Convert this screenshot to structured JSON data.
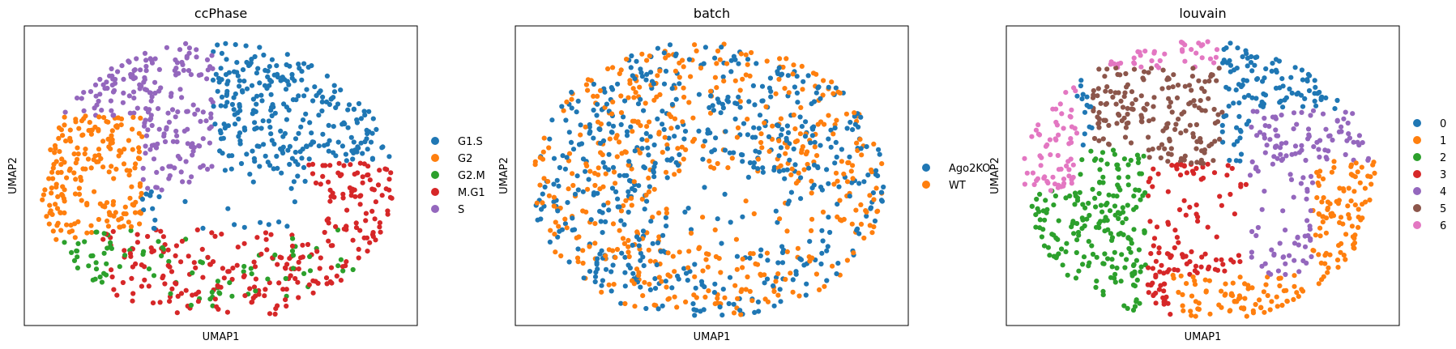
{
  "chart_data": [
    {
      "type": "scatter",
      "title": "ccPhase",
      "xlabel": "UMAP1",
      "ylabel": "UMAP2",
      "ticks": "none",
      "legend_placement": "right",
      "series": [
        {
          "name": "G1.S",
          "color": "#1f77b4"
        },
        {
          "name": "G2",
          "color": "#ff7f0e"
        },
        {
          "name": "G2.M",
          "color": "#2ca02c"
        },
        {
          "name": "M.G1",
          "color": "#d62728"
        },
        {
          "name": "S",
          "color": "#9467bd"
        }
      ]
    },
    {
      "type": "scatter",
      "title": "batch",
      "xlabel": "UMAP1",
      "ylabel": "UMAP2",
      "ticks": "none",
      "legend_placement": "right",
      "series": [
        {
          "name": "Ago2KO",
          "color": "#1f77b4"
        },
        {
          "name": "WT",
          "color": "#ff7f0e"
        }
      ]
    },
    {
      "type": "scatter",
      "title": "louvain",
      "xlabel": "UMAP1",
      "ylabel": "UMAP2",
      "ticks": "none",
      "legend_placement": "right",
      "series": [
        {
          "name": "0",
          "color": "#1f77b4"
        },
        {
          "name": "1",
          "color": "#ff7f0e"
        },
        {
          "name": "2",
          "color": "#2ca02c"
        },
        {
          "name": "3",
          "color": "#d62728"
        },
        {
          "name": "4",
          "color": "#9467bd"
        },
        {
          "name": "5",
          "color": "#8c564b"
        },
        {
          "name": "6",
          "color": "#e377c2"
        }
      ]
    }
  ]
}
